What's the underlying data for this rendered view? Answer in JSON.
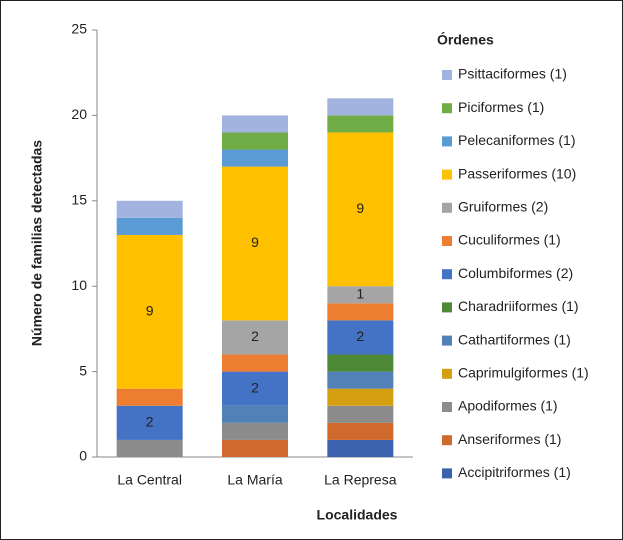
{
  "chart_data": {
    "type": "stacked_bar",
    "y_label": "Número de familias detectadas",
    "x_label": "Localidades",
    "legend_title": "Órdenes",
    "legend_position": "right",
    "categories": [
      "La Central",
      "La María",
      "La Represa"
    ],
    "ylim": [
      0,
      25
    ],
    "yticks": [
      0,
      5,
      10,
      15,
      20,
      25
    ],
    "series": [
      {
        "name": "Accipitriformes (1)",
        "color": "#3a62ad",
        "values": [
          0,
          0,
          1
        ]
      },
      {
        "name": "Anseriformes (1)",
        "color": "#cf6a2c",
        "values": [
          0,
          1,
          1
        ]
      },
      {
        "name": "Apodiformes (1)",
        "color": "#8c8c8c",
        "values": [
          1,
          1,
          1
        ]
      },
      {
        "name": "Caprimulgiformes (1)",
        "color": "#d4a010",
        "values": [
          0,
          0,
          1
        ]
      },
      {
        "name": "Cathartiformes (1)",
        "color": "#5281b8",
        "values": [
          0,
          1,
          1
        ]
      },
      {
        "name": "Charadriiformes (1)",
        "color": "#4e8a35",
        "values": [
          0,
          0,
          1
        ]
      },
      {
        "name": "Columbiformes (2)",
        "color": "#4472c4",
        "values": [
          2,
          2,
          2
        ],
        "show_labels": true
      },
      {
        "name": "Cuculiformes (1)",
        "color": "#ed7d31",
        "values": [
          1,
          1,
          1
        ]
      },
      {
        "name": "Gruiformes (2)",
        "color": "#a5a5a5",
        "values": [
          0,
          2,
          1
        ],
        "show_labels": true
      },
      {
        "name": "Passeriformes (10)",
        "color": "#ffc000",
        "values": [
          9,
          9,
          9
        ],
        "show_labels": true
      },
      {
        "name": "Pelecaniformes (1)",
        "color": "#5b9bd5",
        "values": [
          1,
          1,
          0
        ]
      },
      {
        "name": "Piciformes (1)",
        "color": "#70ad47",
        "values": [
          0,
          1,
          1
        ]
      },
      {
        "name": "Psittaciformes (1)",
        "color": "#a3b3df",
        "values": [
          1,
          1,
          1
        ]
      }
    ]
  }
}
